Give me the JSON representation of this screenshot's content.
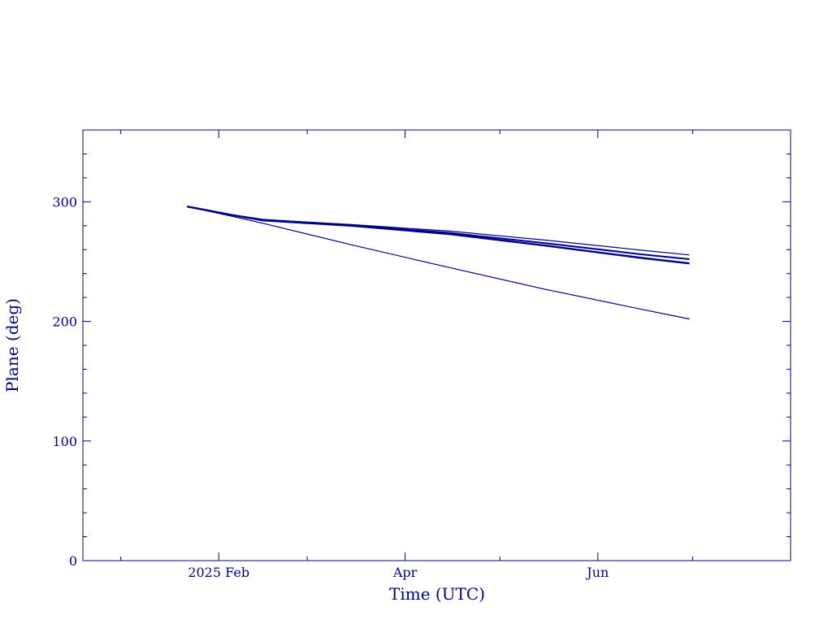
{
  "chart_data": {
    "type": "line",
    "xlabel": "Time (UTC)",
    "ylabel": "Plane (deg)",
    "x_ticks": [
      {
        "date": "2025-02-01",
        "label": "2025 Feb"
      },
      {
        "date": "2025-04-01",
        "label": "Apr"
      },
      {
        "date": "2025-06-01",
        "label": "Jun"
      }
    ],
    "x_minor_ticks": [
      "2025-01-01",
      "2025-03-01",
      "2025-05-01",
      "2025-07-01"
    ],
    "y_ticks": [
      {
        "value": 0,
        "label": "0"
      },
      {
        "value": 100,
        "label": "100"
      },
      {
        "value": 200,
        "label": "200"
      },
      {
        "value": 300,
        "label": "300"
      }
    ],
    "xlim": [
      "2024-12-20",
      "2025-08-01"
    ],
    "ylim": [
      0,
      360
    ],
    "y_minor_step": 20,
    "grid": false,
    "line_color": "#00008b",
    "series": [
      {
        "x": [
          "2025-01-22",
          "2025-02-05",
          "2025-02-15",
          "2025-03-15",
          "2025-04-15",
          "2025-05-15",
          "2025-06-15",
          "2025-06-30"
        ],
        "values": [
          296,
          289,
          285,
          281,
          275.5,
          268,
          259.5,
          255.5
        ],
        "width": 1.2
      },
      {
        "x": [
          "2025-01-22",
          "2025-02-05",
          "2025-02-15",
          "2025-03-15",
          "2025-04-15",
          "2025-05-15",
          "2025-06-15",
          "2025-06-30"
        ],
        "values": [
          296,
          289,
          285,
          280.5,
          274,
          265.5,
          256,
          252
        ],
        "width": 2
      },
      {
        "x": [
          "2025-01-22",
          "2025-02-05",
          "2025-02-15",
          "2025-03-15",
          "2025-04-15",
          "2025-05-15",
          "2025-06-15",
          "2025-06-30"
        ],
        "values": [
          296,
          289,
          284.5,
          280,
          273,
          263.5,
          253,
          248.5
        ],
        "width": 2.4
      },
      {
        "x": [
          "2025-01-22",
          "2025-02-05",
          "2025-02-15",
          "2025-03-15",
          "2025-04-15",
          "2025-05-15",
          "2025-06-15",
          "2025-06-30"
        ],
        "values": [
          296,
          288,
          282,
          264,
          245,
          227,
          210,
          202
        ],
        "width": 1.2
      }
    ]
  }
}
